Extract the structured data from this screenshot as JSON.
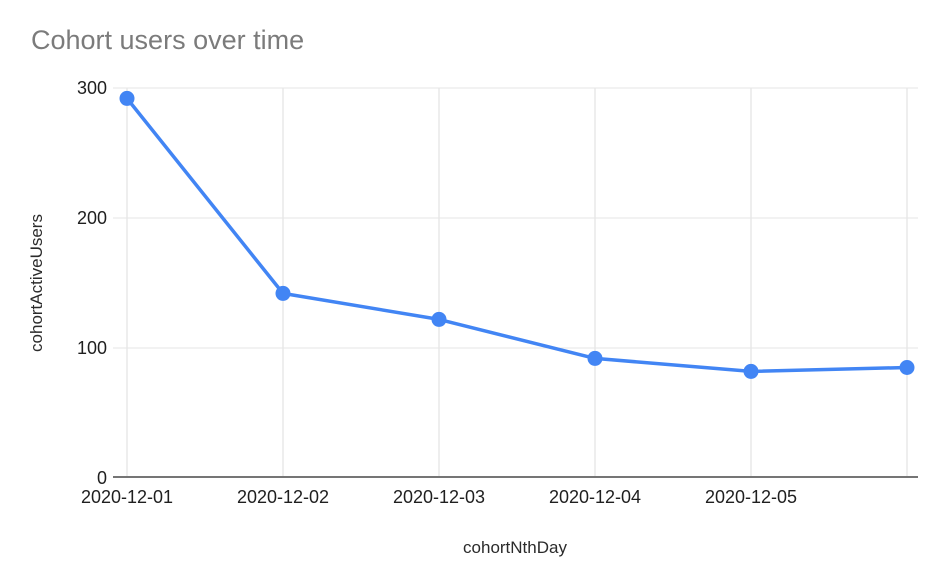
{
  "title": "Cohort users over time",
  "chart_data": {
    "type": "line",
    "title": "Cohort users over time",
    "xlabel": "cohortNthDay",
    "ylabel": "cohortActiveUsers",
    "categories": [
      "2020-12-01",
      "2020-12-02",
      "2020-12-03",
      "2020-12-04",
      "2020-12-05",
      ""
    ],
    "series": [
      {
        "name": "cohortActiveUsers",
        "values": [
          292,
          142,
          122,
          92,
          82,
          85
        ]
      }
    ],
    "y_ticks": [
      0,
      100,
      200,
      300
    ],
    "ylim": [
      0,
      300
    ],
    "grid": true,
    "legend": "none",
    "colors": {
      "line": "#4285f4",
      "point": "#4285f4",
      "hgrid": "#e6e6e6",
      "vgrid": "#dcdcdc",
      "axis": "#757575",
      "title_text": "#7b7b7b",
      "tick_text": "#1f1f1f",
      "axis_title_text": "#2b2b2b",
      "background": "#ffffff"
    }
  }
}
